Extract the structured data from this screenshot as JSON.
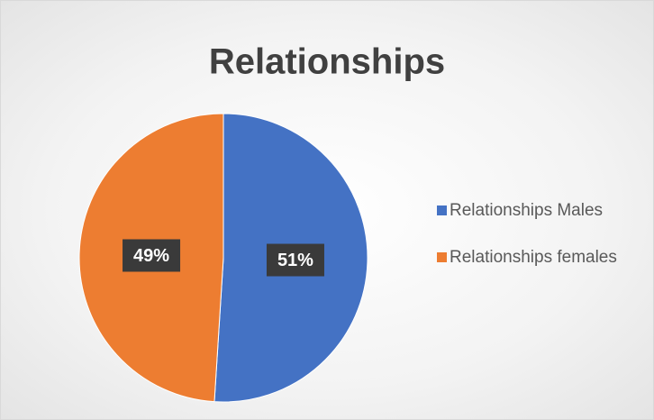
{
  "chart_data": {
    "type": "pie",
    "title": "Relationships",
    "categories": [
      "Relationships Males",
      "Relationships females"
    ],
    "values": [
      51,
      49
    ],
    "value_labels": [
      "51%",
      "49%"
    ],
    "colors": [
      "#4472c4",
      "#ed7d31"
    ],
    "legend": "right"
  }
}
